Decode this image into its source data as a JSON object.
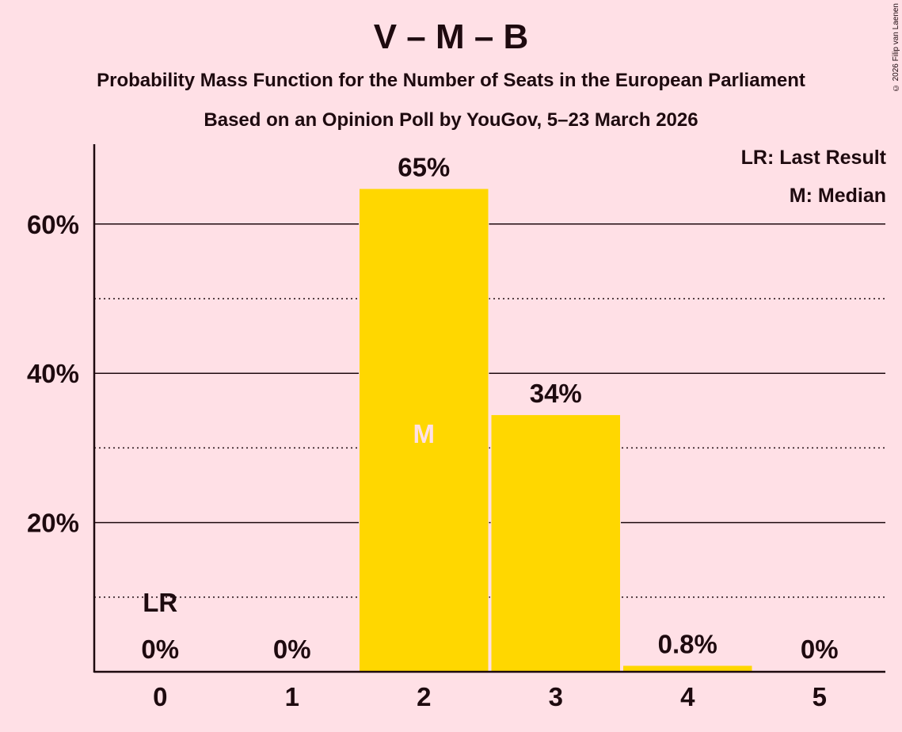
{
  "title": "V – M – B",
  "subtitle": "Probability Mass Function for the Number of Seats in the European Parliament",
  "subtitle2": "Based on an Opinion Poll by YouGov, 5–23 March 2026",
  "copyright": "© 2026 Filip van Laenen",
  "legend": {
    "lr": "LR: Last Result",
    "m": "M: Median"
  },
  "colors": {
    "background": "#FFE0E6",
    "bar": "#FFD700",
    "text": "#1E0A0F",
    "median_marker": "#FFE0E6"
  },
  "chart_data": {
    "type": "bar",
    "title": "V – M – B",
    "subtitle": "Probability Mass Function for the Number of Seats in the European Parliament; Based on an Opinion Poll by YouGov, 5–23 March 2026",
    "xlabel": "",
    "ylabel": "",
    "categories": [
      "0",
      "1",
      "2",
      "3",
      "4",
      "5"
    ],
    "values": [
      0,
      0,
      64.7,
      34.4,
      0.8,
      0
    ],
    "data_labels": [
      "0%",
      "0%",
      "65%",
      "34%",
      "0.8%",
      "0%"
    ],
    "ylim": [
      0,
      70
    ],
    "yticks": [
      20,
      40,
      60
    ],
    "ytick_labels": [
      "20%",
      "40%",
      "60%"
    ],
    "minor_gridlines": [
      10,
      30,
      50
    ],
    "grid": true,
    "annotations": [
      {
        "category": "0",
        "label": "LR",
        "meaning": "Last Result"
      },
      {
        "category": "2",
        "label": "M",
        "meaning": "Median"
      }
    ],
    "legend_position": "top-right"
  }
}
